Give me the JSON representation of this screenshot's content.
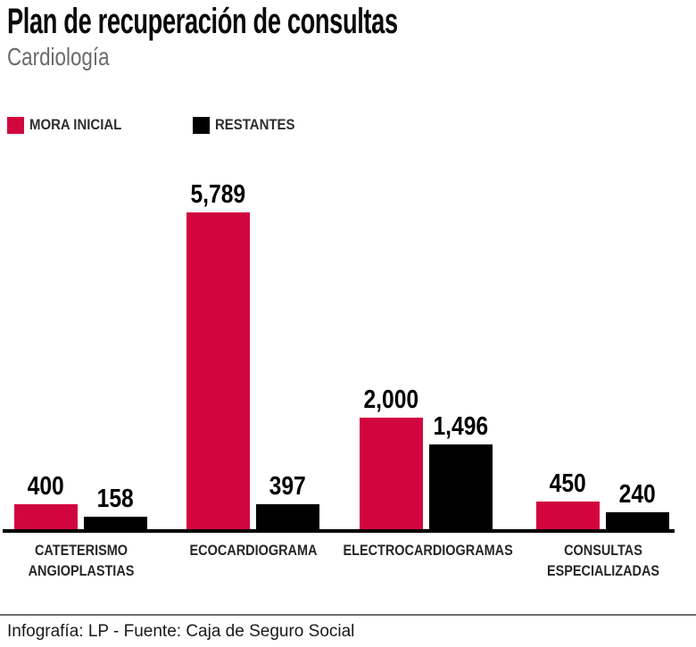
{
  "header": {
    "title": "Plan de recuperación de consultas",
    "subtitle": "Cardiología"
  },
  "chart_data": {
    "type": "bar",
    "title": "Plan de recuperación de consultas",
    "subtitle": "Cardiología",
    "categories": [
      "CATETERISMO ANGIOPLASTIAS",
      "ECOCARDIOGRAMA",
      "ELECTROCARDIOGRAMAS",
      "CONSULTAS ESPECIALIZADAS"
    ],
    "category_lines": [
      [
        "CATETERISMO",
        "ANGIOPLASTIAS"
      ],
      [
        "ECOCARDIOGRAMA"
      ],
      [
        "ELECTROCARDIOGRAMAS"
      ],
      [
        "CONSULTAS",
        "ESPECIALIZADAS"
      ]
    ],
    "series": [
      {
        "name": "MORA INICIAL",
        "color": "#d2063f",
        "values": [
          400,
          5789,
          2000,
          450
        ],
        "values_formatted": [
          "400",
          "5,789",
          "2,000",
          "450"
        ]
      },
      {
        "name": "RESTANTES",
        "color": "#000000",
        "values": [
          158,
          397,
          1496,
          240
        ],
        "values_formatted": [
          "158",
          "397",
          "1,496",
          "240"
        ]
      }
    ],
    "xlabel": "",
    "ylabel": "",
    "ylim": [
      0,
      5789
    ],
    "grid": false,
    "legend_position": "top-left",
    "value_labels_shown": true,
    "axis_color": "#000000"
  },
  "footer": {
    "credit": "Infografía: LP - Fuente: Caja de Seguro Social"
  }
}
